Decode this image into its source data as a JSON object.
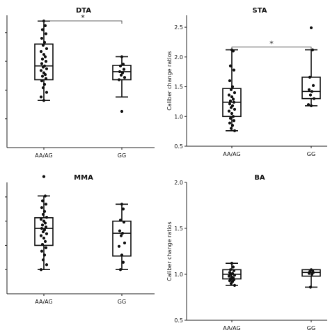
{
  "chart_data": [
    {
      "type": "box",
      "title": "DTA",
      "xlabel": "",
      "ylabel": "",
      "categories": [
        "AA/AG",
        "GG"
      ],
      "ylim": [
        0.5,
        2.8
      ],
      "yticks": [
        1.0,
        1.5,
        2.0,
        2.5
      ],
      "show_ytick_labels": false,
      "significance": {
        "label": "*",
        "from": "AA/AG",
        "to": "GG"
      },
      "boxes": [
        {
          "category": "AA/AG",
          "whisker_low": 1.32,
          "q1": 1.68,
          "median": 1.92,
          "q3": 2.3,
          "whisker_high": 2.7
        },
        {
          "category": "GG",
          "whisker_low": 1.38,
          "q1": 1.68,
          "median": 1.82,
          "q3": 1.93,
          "whisker_high": 2.08
        }
      ],
      "points": [
        {
          "category": "AA/AG",
          "values": [
            2.7,
            2.62,
            2.55,
            2.48,
            2.4,
            2.33,
            2.28,
            2.22,
            2.17,
            2.12,
            2.08,
            2.04,
            2.0,
            1.96,
            1.92,
            1.9,
            1.87,
            1.84,
            1.8,
            1.77,
            1.74,
            1.7,
            1.66,
            1.6,
            1.54,
            1.46,
            1.38,
            1.32
          ]
        },
        {
          "category": "GG",
          "values": [
            2.08,
            1.95,
            1.92,
            1.86,
            1.82,
            1.8,
            1.76,
            1.72,
            1.68,
            1.13
          ]
        }
      ]
    },
    {
      "type": "box",
      "title": "STA",
      "xlabel": "",
      "ylabel": "Caliber change ratios",
      "categories": [
        "AA/AG",
        "GG"
      ],
      "ylim": [
        0.5,
        2.7
      ],
      "yticks": [
        0.5,
        1.0,
        1.5,
        2.0,
        2.5
      ],
      "ytick_labels": [
        "0.5",
        "1.0",
        "1.5",
        "2.0",
        "2.5"
      ],
      "show_ytick_labels": true,
      "significance": {
        "label": "*",
        "from": "AA/AG",
        "to": "GG"
      },
      "boxes": [
        {
          "category": "AA/AG",
          "whisker_low": 0.76,
          "q1": 1.0,
          "median": 1.24,
          "q3": 1.47,
          "whisker_high": 2.12
        },
        {
          "category": "GG",
          "whisker_low": 1.18,
          "q1": 1.3,
          "median": 1.42,
          "q3": 1.66,
          "whisker_high": 2.12
        }
      ],
      "points": [
        {
          "category": "AA/AG",
          "values": [
            2.12,
            2.1,
            1.85,
            1.78,
            1.6,
            1.5,
            1.45,
            1.4,
            1.36,
            1.33,
            1.29,
            1.26,
            1.24,
            1.21,
            1.18,
            1.15,
            1.12,
            1.09,
            1.05,
            1.0,
            0.97,
            0.93,
            0.89,
            0.85,
            0.8,
            0.76
          ]
        },
        {
          "category": "GG",
          "values": [
            2.49,
            2.12,
            1.66,
            1.52,
            1.45,
            1.42,
            1.36,
            1.3,
            1.2,
            1.18
          ]
        }
      ]
    },
    {
      "type": "box",
      "title": "MMA",
      "xlabel": "",
      "ylabel": "",
      "categories": [
        "AA/AG",
        "GG"
      ],
      "ylim": [
        0.5,
        2.8
      ],
      "yticks": [
        1.0,
        1.5,
        2.0,
        2.5
      ],
      "show_ytick_labels": false,
      "boxes": [
        {
          "category": "AA/AG",
          "whisker_low": 1.0,
          "q1": 1.5,
          "median": 1.85,
          "q3": 2.07,
          "whisker_high": 2.52
        },
        {
          "category": "GG",
          "whisker_low": 1.0,
          "q1": 1.28,
          "median": 1.75,
          "q3": 2.0,
          "whisker_high": 2.35
        }
      ],
      "points": [
        {
          "category": "AA/AG",
          "values": [
            2.92,
            2.52,
            2.42,
            2.35,
            2.28,
            2.2,
            2.14,
            2.08,
            2.04,
            2.0,
            1.96,
            1.92,
            1.88,
            1.85,
            1.82,
            1.78,
            1.74,
            1.7,
            1.65,
            1.58,
            1.52,
            1.45,
            1.38,
            1.3,
            1.2,
            1.1,
            1.0
          ]
        },
        {
          "category": "GG",
          "values": [
            2.35,
            2.25,
            2.02,
            1.98,
            1.8,
            1.75,
            1.7,
            1.55,
            1.48,
            1.3,
            1.15,
            1.0
          ]
        }
      ]
    },
    {
      "type": "box",
      "title": "BA",
      "xlabel": "",
      "ylabel": "Caliber change ratios",
      "categories": [
        "AA/AG",
        "GG"
      ],
      "ylim": [
        0.5,
        2.0
      ],
      "yticks": [
        0.5,
        1.0,
        1.5,
        2.0
      ],
      "ytick_labels": [
        "0.5",
        "1.0",
        "1.5",
        "2.0"
      ],
      "show_ytick_labels": true,
      "boxes": [
        {
          "category": "AA/AG",
          "whisker_low": 0.88,
          "q1": 0.95,
          "median": 1.0,
          "q3": 1.05,
          "whisker_high": 1.12
        },
        {
          "category": "GG",
          "whisker_low": 0.86,
          "q1": 0.98,
          "median": 1.02,
          "q3": 1.05,
          "whisker_high": 1.05
        }
      ],
      "points": [
        {
          "category": "AA/AG",
          "values": [
            1.12,
            1.08,
            1.05,
            1.04,
            1.02,
            1.01,
            1.0,
            0.99,
            0.98,
            0.97,
            0.96,
            0.95,
            0.94,
            0.93,
            0.92,
            0.9,
            0.88
          ]
        },
        {
          "category": "GG",
          "values": [
            1.05,
            1.04,
            1.03,
            1.02,
            1.01,
            1.0,
            0.86
          ]
        }
      ]
    }
  ]
}
